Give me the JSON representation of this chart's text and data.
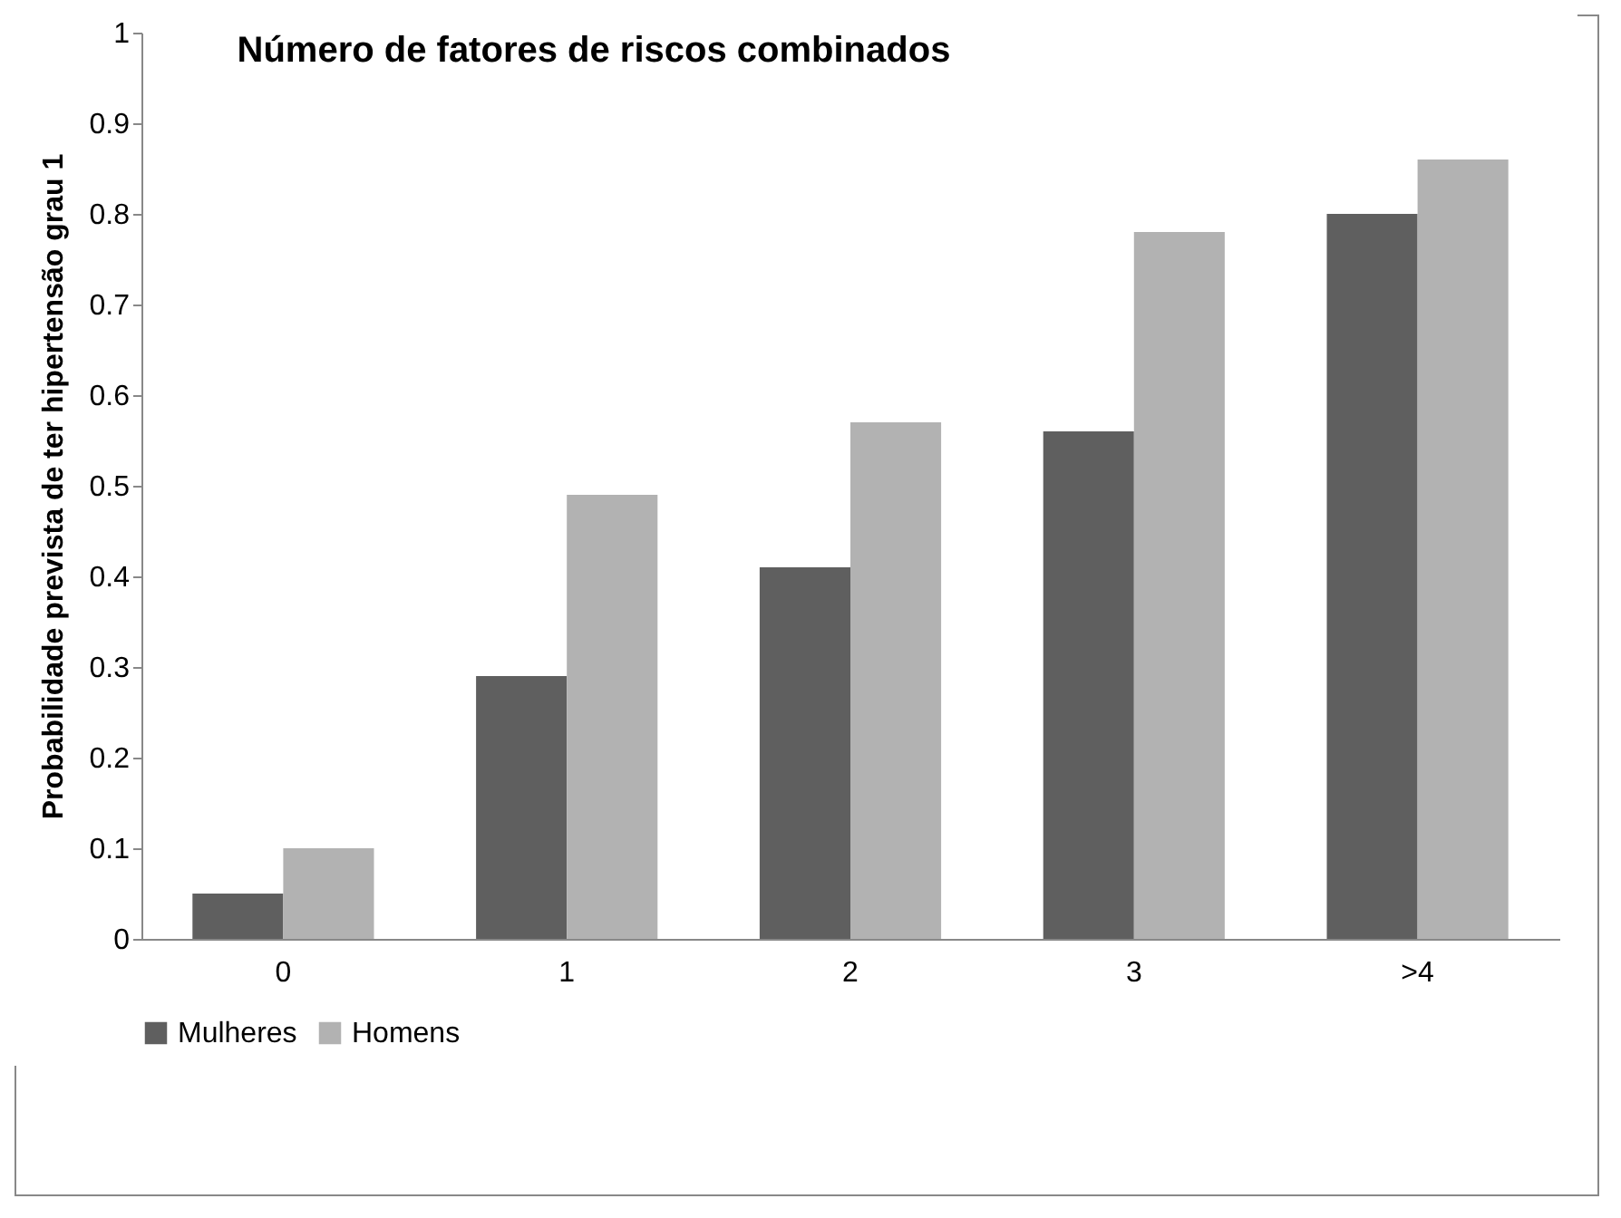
{
  "chart_data": {
    "type": "bar",
    "title": "Número de fatores de riscos combinados",
    "ylabel": "Probabilidade prevista de ter hipertensão grau 1",
    "categories": [
      "0",
      "1",
      "2",
      "3",
      ">4"
    ],
    "series": [
      {
        "name": "Mulheres",
        "color": "#5f5f5f",
        "values": [
          0.05,
          0.29,
          0.41,
          0.56,
          0.8
        ]
      },
      {
        "name": "Homens",
        "color": "#b2b2b2",
        "values": [
          0.1,
          0.49,
          0.57,
          0.78,
          0.86
        ]
      }
    ],
    "ylim": [
      0,
      1
    ],
    "yticks": [
      0,
      0.1,
      0.2,
      0.3,
      0.4,
      0.5,
      0.6,
      0.7,
      0.8,
      0.9,
      1
    ],
    "grid": false,
    "legend": "bottom"
  }
}
